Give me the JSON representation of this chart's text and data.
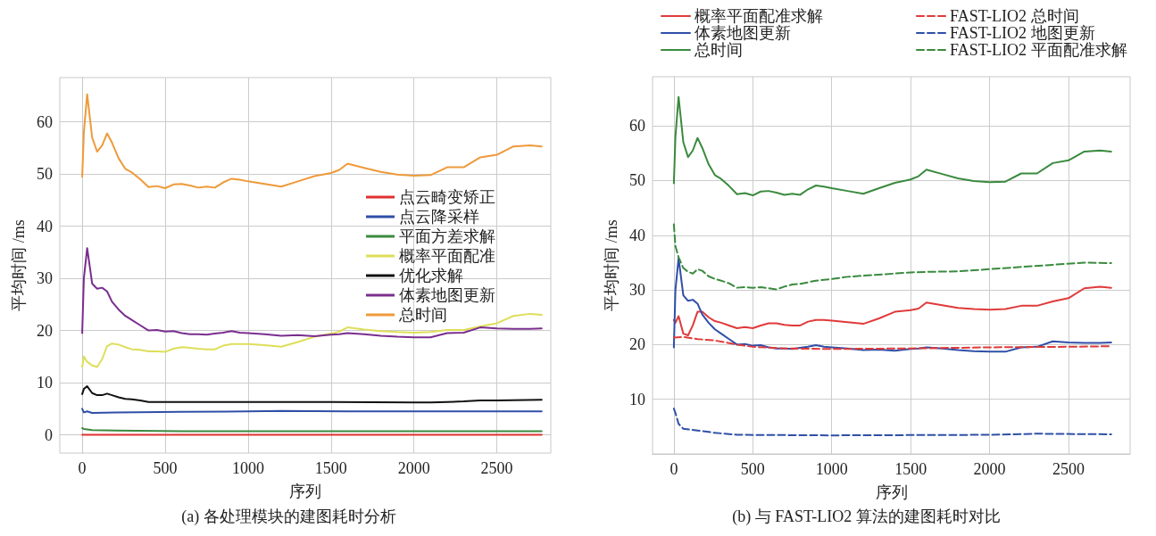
{
  "chart_data": [
    {
      "type": "line",
      "xlabel": "序列",
      "ylabel": "平均时间 /ms",
      "annotations": [
        "(a) 各处理模块的建图耗时分析"
      ],
      "xlim": [
        -135,
        2825
      ],
      "ylim": [
        -3.5,
        68.5
      ],
      "xticks": [
        0,
        500,
        1000,
        1500,
        2000,
        2500
      ],
      "yticks": [
        0,
        10,
        20,
        30,
        40,
        50,
        60
      ],
      "grid": true,
      "legend": "right",
      "marker": "none",
      "line_style": "solid",
      "series": [
        {
          "name": "点云畸变矫正",
          "color": "#e03030",
          "x": [
            0,
            500,
            1000,
            1500,
            2000,
            2500,
            2770
          ],
          "values": [
            0,
            0,
            0,
            0,
            0,
            0,
            0
          ]
        },
        {
          "name": "点云降采样",
          "color": "#2f4fa8",
          "x": [
            0,
            10,
            30,
            60,
            200,
            600,
            1000,
            1200,
            1600,
            2000,
            2500,
            2770
          ],
          "values": [
            5,
            4.3,
            4.5,
            4.2,
            4.3,
            4.4,
            4.5,
            4.6,
            4.5,
            4.5,
            4.5,
            4.5
          ]
        },
        {
          "name": "平面方差求解",
          "color": "#3a8a3e",
          "x": [
            0,
            10,
            60,
            200,
            600,
            1200,
            2000,
            2770
          ],
          "values": [
            1.3,
            1.1,
            0.9,
            0.8,
            0.7,
            0.7,
            0.7,
            0.7
          ]
        },
        {
          "name": "概率平面配准",
          "color": "#dede5a",
          "x": [
            0,
            10,
            30,
            60,
            90,
            120,
            150,
            180,
            220,
            260,
            300,
            350,
            400,
            450,
            500,
            550,
            600,
            650,
            700,
            750,
            800,
            850,
            900,
            950,
            1000,
            1100,
            1200,
            1300,
            1400,
            1500,
            1550,
            1600,
            1700,
            1800,
            1900,
            2000,
            2100,
            2200,
            2300,
            2400,
            2500,
            2600,
            2700,
            2770
          ],
          "values": [
            13,
            15,
            14,
            13.3,
            13,
            14.5,
            17,
            17.5,
            17.3,
            16.8,
            16.4,
            16.3,
            16,
            16,
            15.9,
            16.5,
            16.8,
            16.7,
            16.5,
            16.4,
            16.4,
            17.1,
            17.4,
            17.4,
            17.4,
            17.2,
            16.9,
            17.8,
            18.8,
            19.4,
            19.8,
            20.6,
            20.2,
            19.9,
            19.7,
            19.6,
            19.7,
            20.1,
            20.1,
            20.8,
            21.4,
            22.8,
            23.2,
            23
          ]
        },
        {
          "name": "优化求解",
          "color": "#111111",
          "x": [
            0,
            10,
            30,
            60,
            90,
            120,
            150,
            180,
            220,
            260,
            300,
            350,
            400,
            600,
            1000,
            1500,
            2000,
            2100,
            2200,
            2300,
            2400,
            2500,
            2770
          ],
          "values": [
            7.8,
            8.8,
            9.3,
            8,
            7.6,
            7.6,
            7.9,
            7.6,
            7.2,
            6.9,
            6.8,
            6.6,
            6.3,
            6.3,
            6.3,
            6.3,
            6.2,
            6.2,
            6.3,
            6.4,
            6.6,
            6.6,
            6.7
          ]
        },
        {
          "name": "体素地图更新",
          "color": "#7a2e8e",
          "x": [
            0,
            10,
            30,
            60,
            90,
            120,
            150,
            180,
            220,
            260,
            300,
            350,
            400,
            450,
            500,
            550,
            600,
            650,
            700,
            750,
            800,
            850,
            900,
            950,
            1000,
            1100,
            1200,
            1300,
            1400,
            1500,
            1550,
            1600,
            1700,
            1800,
            1900,
            2000,
            2100,
            2200,
            2300,
            2400,
            2500,
            2600,
            2700,
            2770
          ],
          "values": [
            19.5,
            30,
            35.8,
            29,
            28,
            28.2,
            27.5,
            25.5,
            24,
            22.8,
            22,
            21,
            20,
            20.1,
            19.8,
            19.9,
            19.5,
            19.3,
            19.3,
            19.2,
            19.4,
            19.6,
            19.9,
            19.6,
            19.5,
            19.3,
            19,
            19.1,
            18.9,
            19.2,
            19.3,
            19.5,
            19.3,
            19,
            18.8,
            18.7,
            18.7,
            19.5,
            19.6,
            20.6,
            20.4,
            20.3,
            20.3,
            20.4
          ]
        },
        {
          "name": "总时间",
          "color": "#ee9a3a",
          "x": [
            0,
            10,
            30,
            60,
            90,
            120,
            150,
            180,
            220,
            260,
            300,
            350,
            400,
            450,
            500,
            550,
            600,
            650,
            700,
            750,
            800,
            850,
            900,
            950,
            1000,
            1100,
            1200,
            1300,
            1400,
            1500,
            1550,
            1600,
            1700,
            1800,
            1900,
            2000,
            2100,
            2200,
            2300,
            2400,
            2500,
            2600,
            2700,
            2770
          ],
          "values": [
            49.5,
            58,
            65.3,
            57,
            54.3,
            55.5,
            57.8,
            56,
            53,
            51,
            50.3,
            49,
            47.5,
            47.7,
            47.3,
            48,
            48.1,
            47.8,
            47.4,
            47.6,
            47.4,
            48.4,
            49.1,
            48.9,
            48.6,
            48.1,
            47.6,
            48.6,
            49.6,
            50.2,
            50.8,
            52,
            51.2,
            50.4,
            49.9,
            49.7,
            49.8,
            51.3,
            51.3,
            53.2,
            53.7,
            55.3,
            55.5,
            55.3
          ]
        }
      ]
    },
    {
      "type": "line",
      "xlabel": "序列",
      "ylabel": "平均时间 /ms",
      "annotations": [
        "(b) 与 FAST-LIO2 算法的建图耗时对比"
      ],
      "xlim": [
        -135,
        2890
      ],
      "ylim": [
        0,
        69
      ],
      "xticks": [
        0,
        500,
        1000,
        1500,
        2000,
        2500
      ],
      "yticks": [
        10,
        20,
        30,
        40,
        50,
        60
      ],
      "grid": true,
      "legend": "top",
      "marker": "none",
      "series": [
        {
          "name": "概率平面配准求解",
          "color": "#e03a3a",
          "line_style": "solid",
          "x": [
            0,
            10,
            30,
            60,
            90,
            120,
            150,
            180,
            220,
            260,
            300,
            350,
            400,
            450,
            500,
            550,
            600,
            650,
            700,
            750,
            800,
            850,
            900,
            950,
            1000,
            1100,
            1200,
            1300,
            1400,
            1500,
            1550,
            1600,
            1700,
            1800,
            1900,
            2000,
            2100,
            2200,
            2300,
            2400,
            2500,
            2600,
            2700,
            2770
          ],
          "values": [
            24.5,
            24,
            25.2,
            22,
            21.7,
            23.5,
            26,
            26,
            25,
            24.3,
            24,
            23.5,
            23,
            23.2,
            23,
            23.5,
            23.9,
            23.9,
            23.6,
            23.5,
            23.5,
            24.2,
            24.5,
            24.5,
            24.4,
            24.1,
            23.8,
            24.8,
            26,
            26.3,
            26.6,
            27.7,
            27.2,
            26.7,
            26.5,
            26.4,
            26.5,
            27.1,
            27.1,
            27.9,
            28.5,
            30.3,
            30.6,
            30.4
          ]
        },
        {
          "name": "体素地图更新",
          "color": "#2f4fa8",
          "line_style": "solid",
          "x": [
            0,
            10,
            30,
            60,
            90,
            120,
            150,
            180,
            220,
            260,
            300,
            350,
            400,
            450,
            500,
            550,
            600,
            650,
            700,
            750,
            800,
            850,
            900,
            950,
            1000,
            1100,
            1200,
            1300,
            1400,
            1500,
            1550,
            1600,
            1700,
            1800,
            1900,
            2000,
            2100,
            2200,
            2300,
            2400,
            2500,
            2600,
            2700,
            2770
          ],
          "values": [
            19.5,
            30,
            35.8,
            29,
            28,
            28.2,
            27.5,
            25.5,
            24,
            22.8,
            22,
            21,
            20,
            20.1,
            19.8,
            19.9,
            19.5,
            19.3,
            19.3,
            19.2,
            19.4,
            19.6,
            19.9,
            19.6,
            19.5,
            19.3,
            19,
            19.1,
            18.9,
            19.2,
            19.3,
            19.5,
            19.3,
            19,
            18.8,
            18.7,
            18.7,
            19.5,
            19.6,
            20.6,
            20.4,
            20.3,
            20.3,
            20.4
          ]
        },
        {
          "name": "总时间",
          "color": "#3a8a3e",
          "line_style": "solid",
          "x": [
            0,
            10,
            30,
            60,
            90,
            120,
            150,
            180,
            220,
            260,
            300,
            350,
            400,
            450,
            500,
            550,
            600,
            650,
            700,
            750,
            800,
            850,
            900,
            950,
            1000,
            1100,
            1200,
            1300,
            1400,
            1500,
            1550,
            1600,
            1700,
            1800,
            1900,
            2000,
            2100,
            2200,
            2300,
            2400,
            2500,
            2600,
            2700,
            2770
          ],
          "values": [
            49.5,
            58,
            65.3,
            57,
            54.3,
            55.5,
            57.8,
            56,
            53,
            51,
            50.3,
            49,
            47.5,
            47.7,
            47.3,
            48,
            48.1,
            47.8,
            47.4,
            47.6,
            47.4,
            48.4,
            49.1,
            48.9,
            48.6,
            48.1,
            47.6,
            48.6,
            49.6,
            50.2,
            50.8,
            52,
            51.2,
            50.4,
            49.9,
            49.7,
            49.8,
            51.3,
            51.3,
            53.2,
            53.7,
            55.3,
            55.5,
            55.3
          ]
        },
        {
          "name": "FAST-LIO2 总时间",
          "color": "#e03a3a",
          "line_style": "dashed",
          "x": [
            0,
            60,
            150,
            250,
            400,
            500,
            700,
            1000,
            1500,
            2000,
            2500,
            2770
          ],
          "values": [
            21.3,
            21.4,
            21,
            20.8,
            20,
            19.6,
            19.3,
            19.2,
            19.3,
            19.5,
            19.6,
            19.7
          ]
        },
        {
          "name": "FAST-LIO2 地图更新",
          "color": "#2f4fa8",
          "line_style": "dashed",
          "x": [
            0,
            10,
            30,
            60,
            150,
            250,
            400,
            1000,
            2000,
            2300,
            2770
          ],
          "values": [
            8.3,
            7.5,
            5.5,
            4.6,
            4.3,
            3.9,
            3.5,
            3.4,
            3.5,
            3.7,
            3.6
          ]
        },
        {
          "name": "FAST-LIO2 平面配准求解",
          "color": "#3a8a3e",
          "line_style": "dashed",
          "x": [
            0,
            10,
            30,
            60,
            90,
            120,
            150,
            180,
            220,
            260,
            300,
            350,
            400,
            450,
            500,
            550,
            600,
            650,
            700,
            750,
            800,
            900,
            1000,
            1100,
            1200,
            1300,
            1400,
            1500,
            1600,
            1800,
            2000,
            2200,
            2400,
            2600,
            2770
          ],
          "values": [
            42,
            38,
            36,
            34,
            33.3,
            33,
            33.8,
            33.5,
            32.5,
            32,
            31.7,
            31.2,
            30.4,
            30.5,
            30.4,
            30.5,
            30.3,
            30.1,
            30.6,
            31,
            31.1,
            31.7,
            32,
            32.4,
            32.6,
            32.8,
            33,
            33.2,
            33.3,
            33.4,
            33.8,
            34.2,
            34.6,
            35,
            34.9
          ]
        }
      ]
    }
  ]
}
